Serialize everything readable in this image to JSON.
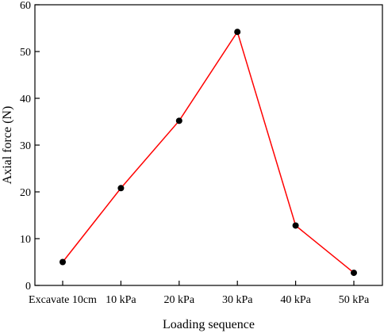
{
  "chart_data": {
    "type": "line",
    "title": "",
    "xlabel": "Loading sequence",
    "ylabel": "Axial force (N)",
    "categories": [
      "Excavate 10cm",
      "10 kPa",
      "20 kPa",
      "30 kPa",
      "40 kPa",
      "50 kPa"
    ],
    "series": [
      {
        "name": "",
        "values": [
          5.0,
          20.8,
          35.2,
          54.2,
          12.8,
          2.7
        ]
      }
    ],
    "ylim": [
      0,
      60
    ],
    "yticks": [
      0,
      10,
      20,
      30,
      40,
      50,
      60
    ],
    "grid": false,
    "legend": "none",
    "line_color": "#ff0000",
    "marker_color": "#000000"
  }
}
